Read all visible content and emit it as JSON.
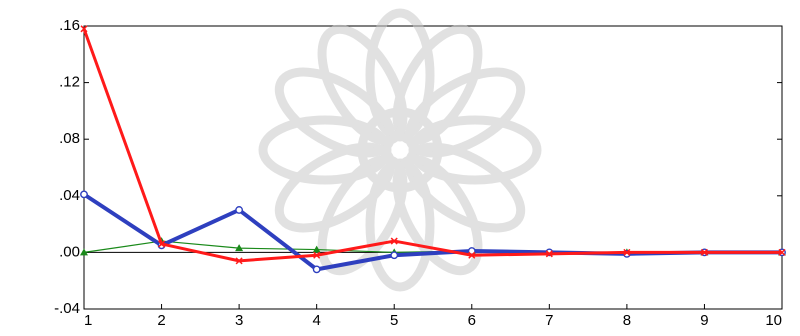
{
  "chart_data": {
    "type": "line",
    "title": "",
    "xlabel": "",
    "ylabel": "",
    "x": [
      1,
      2,
      3,
      4,
      5,
      6,
      7,
      8,
      9,
      10
    ],
    "x_tick_labels": [
      "1",
      "2",
      "3",
      "4",
      "5",
      "6",
      "7",
      "8",
      "9",
      "10"
    ],
    "ylim": [
      -0.04,
      0.16
    ],
    "y_ticks": [
      -0.04,
      0.0,
      0.04,
      0.08,
      0.12,
      0.16
    ],
    "y_tick_labels": [
      "-.04",
      ".00",
      ".04",
      ".08",
      ".12",
      ".16"
    ],
    "grid": false,
    "legend": "none",
    "zero_line": true,
    "series": [
      {
        "color": "#2e3fbf",
        "marker": "circle",
        "values": [
          0.041,
          0.005,
          0.03,
          -0.012,
          -0.002,
          0.001,
          0.0,
          -0.001,
          0.0,
          0.0
        ]
      },
      {
        "color": "#ff1a1a",
        "marker": "x",
        "values": [
          0.158,
          0.006,
          -0.006,
          -0.002,
          0.008,
          -0.002,
          -0.001,
          0.0,
          0.0,
          0.0
        ]
      },
      {
        "color": "#1a8a1a",
        "marker": "triangle",
        "values": [
          0.0,
          0.008,
          0.003,
          0.002,
          0.0,
          0.001,
          0.0,
          0.0,
          0.0,
          0.0
        ]
      }
    ]
  }
}
